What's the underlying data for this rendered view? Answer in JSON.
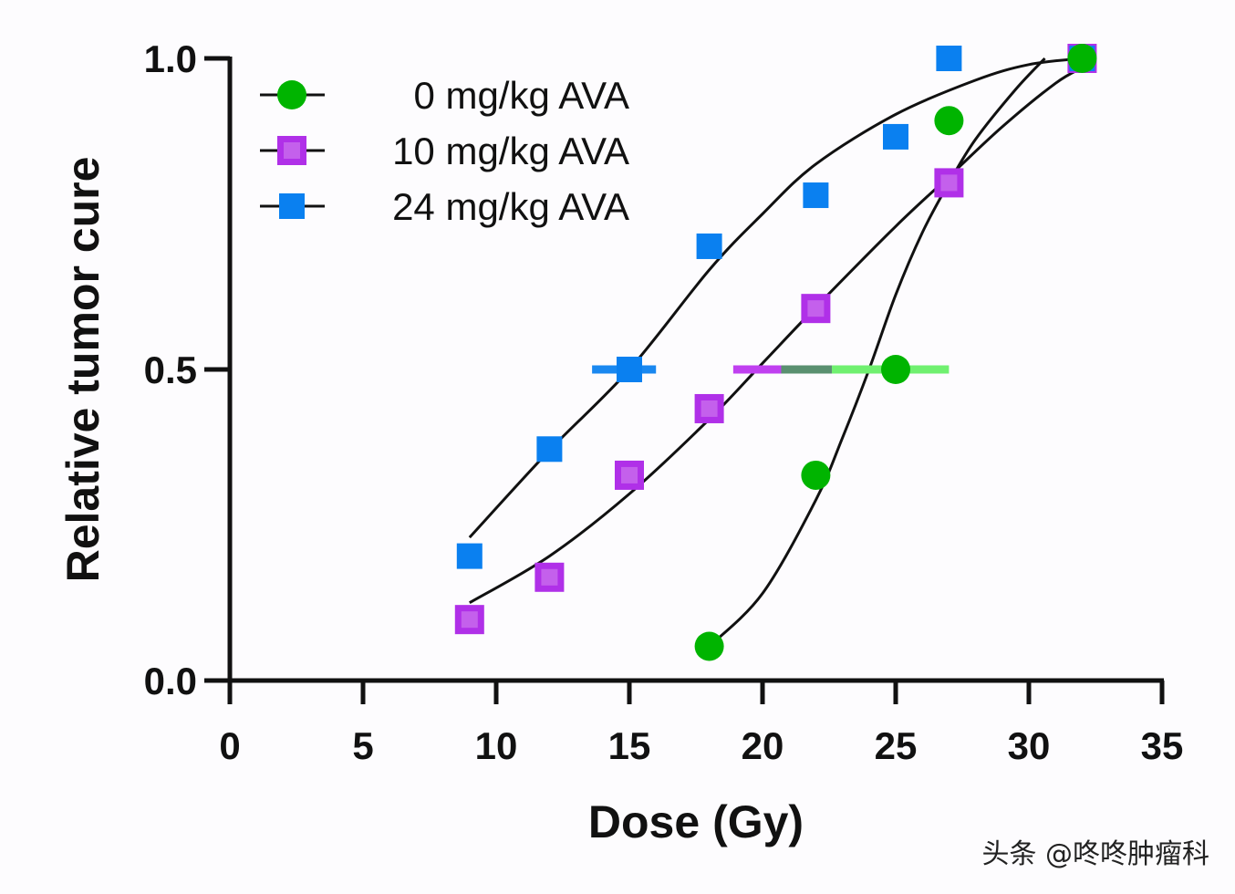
{
  "chart_data": {
    "type": "scatter",
    "title": "",
    "xlabel": "Dose (Gy)",
    "ylabel": "Relative tumor cure",
    "xlim": [
      0,
      35
    ],
    "ylim": [
      0,
      1.0
    ],
    "xticks": [
      0,
      5,
      10,
      15,
      20,
      25,
      30,
      35
    ],
    "xtick_labels": [
      "0",
      "5",
      "10",
      "15",
      "20",
      "25",
      "30",
      "35"
    ],
    "yticks": [
      0,
      0.5,
      1.0
    ],
    "ytick_labels": [
      "0.0",
      "0.5",
      "1.0"
    ],
    "grid": false,
    "legend_position": "top-left",
    "series": [
      {
        "name": "0 mg/kg AVA",
        "marker": "circle",
        "color": "#00b400",
        "x": [
          18,
          22,
          25,
          27,
          32
        ],
        "y": [
          0.055,
          0.33,
          0.5,
          0.9,
          1.0
        ],
        "fit_curve": {
          "x": [
            18,
            20,
            22,
            23,
            24,
            25,
            26,
            27,
            28,
            29.5,
            30.6
          ],
          "y": [
            0.055,
            0.14,
            0.29,
            0.39,
            0.5,
            0.62,
            0.72,
            0.8,
            0.87,
            0.95,
            1.0
          ]
        },
        "ed50_bar": {
          "y": 0.5,
          "x_range": [
            20.7,
            27.0
          ],
          "color": "#70f070"
        }
      },
      {
        "name": "10 mg/kg AVA",
        "marker": "square",
        "color": "#b030e8",
        "x": [
          9,
          12,
          15,
          18,
          22,
          27,
          32
        ],
        "y": [
          0.098,
          0.166,
          0.33,
          0.437,
          0.598,
          0.8,
          1.0
        ],
        "fit_curve": {
          "x": [
            9,
            12,
            15,
            18,
            20,
            22,
            25,
            27,
            29,
            31,
            32
          ],
          "y": [
            0.125,
            0.2,
            0.3,
            0.42,
            0.51,
            0.6,
            0.73,
            0.81,
            0.89,
            0.96,
            0.985
          ]
        },
        "ed50_bar": {
          "y": 0.5,
          "x_range": [
            18.9,
            22.6
          ],
          "color": "#c040f0"
        }
      },
      {
        "name": "24 mg/kg AVA",
        "marker": "square",
        "color": "#0a80f0",
        "x": [
          9,
          12,
          15,
          18,
          22,
          25,
          27,
          32
        ],
        "y": [
          0.2,
          0.372,
          0.5,
          0.698,
          0.78,
          0.874,
          1.0,
          1.0
        ],
        "fit_curve": {
          "x": [
            9,
            12,
            15,
            18,
            20,
            22,
            25,
            28,
            30,
            32
          ],
          "y": [
            0.23,
            0.37,
            0.5,
            0.66,
            0.75,
            0.83,
            0.91,
            0.965,
            0.99,
            1.0
          ]
        },
        "ed50_bar": {
          "y": 0.5,
          "x_range": [
            13.6,
            16.0
          ],
          "color": "#1a88f0"
        }
      }
    ],
    "overlap_bar": {
      "y": 0.5,
      "x_range": [
        20.7,
        22.6
      ],
      "color": "#5a9070"
    }
  },
  "watermark": "头条 @咚咚肿瘤科"
}
